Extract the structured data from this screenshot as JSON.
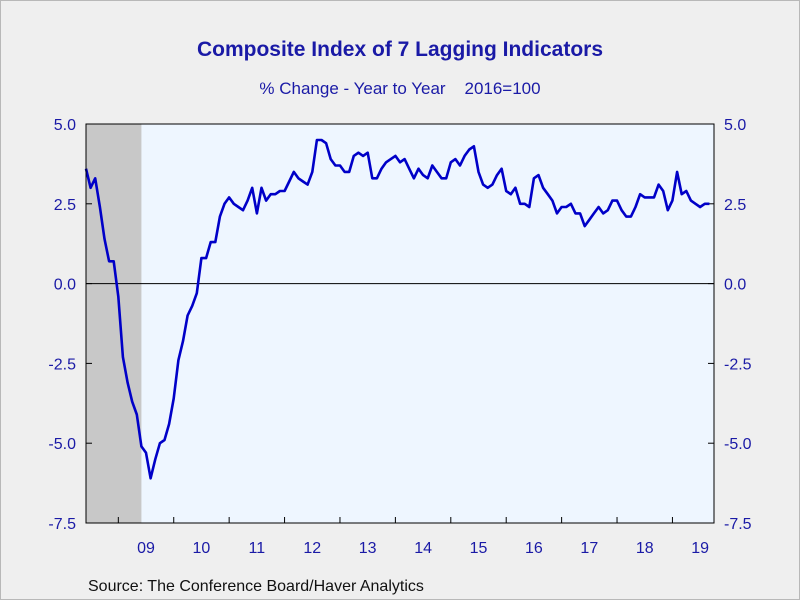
{
  "chart_data": {
    "type": "line",
    "title": "Composite Index of 7 Lagging Indicators",
    "subtitle": "% Change - Year to Year    2016=100",
    "source": "Source:  The Conference Board/Haver Analytics",
    "ylim": [
      -7.5,
      5.0
    ],
    "yticks": [
      5.0,
      2.5,
      0.0,
      -2.5,
      -5.0,
      -7.5
    ],
    "ytick_labels": [
      "5.0",
      "2.5",
      "0.0",
      "-2.5",
      "-5.0",
      "-7.5"
    ],
    "xlim": [
      "2008-06",
      "2019-09"
    ],
    "x_tick_labels": [
      "09",
      "10",
      "11",
      "12",
      "13",
      "14",
      "15",
      "16",
      "17",
      "18",
      "19"
    ],
    "x_tick_years": [
      2009,
      2010,
      2011,
      2012,
      2013,
      2014,
      2015,
      2016,
      2017,
      2018,
      2019
    ],
    "recession_shading": {
      "start": "2008-06",
      "end": "2009-06",
      "color": "#c8c8c8"
    },
    "zero_line": true,
    "series": [
      {
        "color": "#0000c8",
        "x": [
          "2008-06",
          "2008-07",
          "2008-08",
          "2008-09",
          "2008-10",
          "2008-11",
          "2008-12",
          "2009-01",
          "2009-02",
          "2009-03",
          "2009-04",
          "2009-05",
          "2009-06",
          "2009-07",
          "2009-08",
          "2009-09",
          "2009-10",
          "2009-11",
          "2009-12",
          "2010-01",
          "2010-02",
          "2010-03",
          "2010-04",
          "2010-05",
          "2010-06",
          "2010-07",
          "2010-08",
          "2010-09",
          "2010-10",
          "2010-11",
          "2010-12",
          "2011-01",
          "2011-02",
          "2011-03",
          "2011-04",
          "2011-05",
          "2011-06",
          "2011-07",
          "2011-08",
          "2011-09",
          "2011-10",
          "2011-11",
          "2011-12",
          "2012-01",
          "2012-02",
          "2012-03",
          "2012-04",
          "2012-05",
          "2012-06",
          "2012-07",
          "2012-08",
          "2012-09",
          "2012-10",
          "2012-11",
          "2012-12",
          "2013-01",
          "2013-02",
          "2013-03",
          "2013-04",
          "2013-05",
          "2013-06",
          "2013-07",
          "2013-08",
          "2013-09",
          "2013-10",
          "2013-11",
          "2013-12",
          "2014-01",
          "2014-02",
          "2014-03",
          "2014-04",
          "2014-05",
          "2014-06",
          "2014-07",
          "2014-08",
          "2014-09",
          "2014-10",
          "2014-11",
          "2014-12",
          "2015-01",
          "2015-02",
          "2015-03",
          "2015-04",
          "2015-05",
          "2015-06",
          "2015-07",
          "2015-08",
          "2015-09",
          "2015-10",
          "2015-11",
          "2015-12",
          "2016-01",
          "2016-02",
          "2016-03",
          "2016-04",
          "2016-05",
          "2016-06",
          "2016-07",
          "2016-08",
          "2016-09",
          "2016-10",
          "2016-11",
          "2016-12",
          "2017-01",
          "2017-02",
          "2017-03",
          "2017-04",
          "2017-05",
          "2017-06",
          "2017-07",
          "2017-08",
          "2017-09",
          "2017-10",
          "2017-11",
          "2017-12",
          "2018-01",
          "2018-02",
          "2018-03",
          "2018-04",
          "2018-05",
          "2018-06",
          "2018-07",
          "2018-08",
          "2018-09",
          "2018-10",
          "2018-11",
          "2018-12",
          "2019-01",
          "2019-02",
          "2019-03",
          "2019-04",
          "2019-05",
          "2019-06",
          "2019-07",
          "2019-08",
          "2019-09"
        ],
        "y": [
          3.6,
          3.0,
          3.3,
          2.4,
          1.4,
          0.7,
          0.7,
          -0.4,
          -2.3,
          -3.1,
          -3.7,
          -4.1,
          -5.1,
          -5.3,
          -6.1,
          -5.5,
          -5.0,
          -4.9,
          -4.4,
          -3.6,
          -2.4,
          -1.8,
          -1.0,
          -0.7,
          -0.3,
          0.8,
          0.8,
          1.3,
          1.3,
          2.1,
          2.5,
          2.7,
          2.5,
          2.4,
          2.3,
          2.6,
          3.0,
          2.2,
          3.0,
          2.6,
          2.8,
          2.8,
          2.9,
          2.9,
          3.2,
          3.5,
          3.3,
          3.2,
          3.1,
          3.5,
          4.5,
          4.5,
          4.4,
          3.9,
          3.7,
          3.7,
          3.5,
          3.5,
          4.0,
          4.1,
          4.0,
          4.1,
          3.3,
          3.3,
          3.6,
          3.8,
          3.9,
          4.0,
          3.8,
          3.9,
          3.6,
          3.3,
          3.6,
          3.4,
          3.3,
          3.7,
          3.5,
          3.3,
          3.3,
          3.8,
          3.9,
          3.7,
          4.0,
          4.2,
          4.3,
          3.5,
          3.1,
          3.0,
          3.1,
          3.4,
          3.6,
          2.9,
          2.8,
          3.0,
          2.5,
          2.5,
          2.4,
          3.3,
          3.4,
          3.0,
          2.8,
          2.6,
          2.2,
          2.4,
          2.4,
          2.5,
          2.2,
          2.2,
          1.8,
          2.0,
          2.2,
          2.4,
          2.2,
          2.3,
          2.6,
          2.6,
          2.3,
          2.1,
          2.1,
          2.4,
          2.8,
          2.7,
          2.7,
          2.7,
          3.1,
          2.9,
          2.3,
          2.6,
          3.5,
          2.8,
          2.9,
          2.6,
          2.5,
          2.4,
          2.5,
          2.5
        ]
      }
    ]
  }
}
